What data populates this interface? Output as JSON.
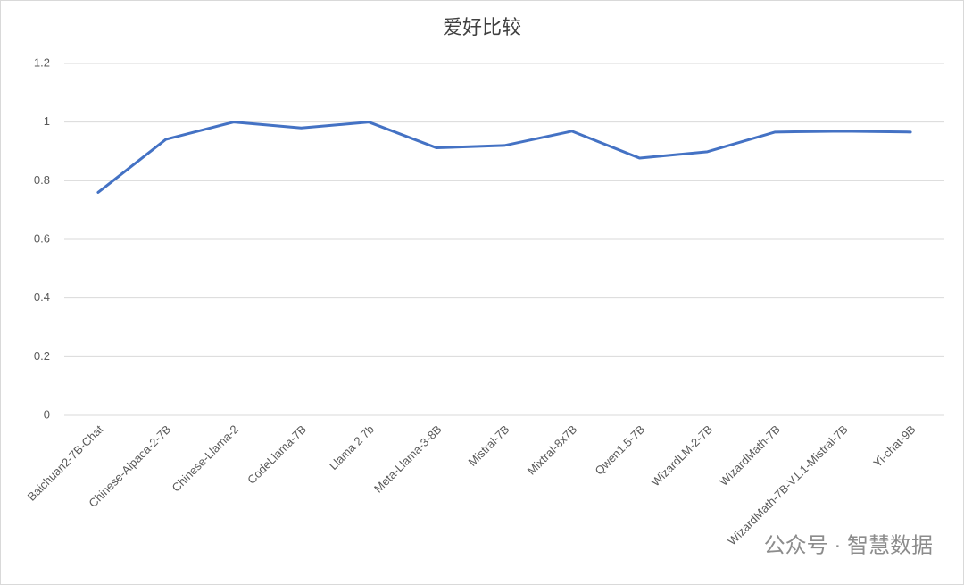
{
  "chart_data": {
    "type": "line",
    "title": "爱好比较",
    "categories": [
      "Baichuan2-7B-Chat",
      "Chinese-Alpaca-2-7B",
      "Chinese-Llama-2",
      "CodeLlama-7B",
      "Llama 2 7b",
      "Meta-Llama-3-8B",
      "Mistral-7B",
      "Mixtral-8x7B",
      "Qwen1.5-7B",
      "WizardLM-2-7B",
      "WizardMath-7B",
      "WizardMath-7B-V1.1-Mistral-7B",
      "Yi-chat-9B"
    ],
    "series": [
      {
        "name": "爱好",
        "color": "#4472c4",
        "values": [
          0.76,
          0.941,
          1.0,
          0.98,
          1.0,
          0.912,
          0.92,
          0.969,
          0.877,
          0.899,
          0.966,
          0.969,
          0.966
        ]
      }
    ],
    "ylim": [
      0,
      1.2
    ],
    "yticks": [
      0,
      0.2,
      0.4,
      0.6,
      0.8,
      1,
      1.2
    ],
    "grid": true,
    "watermark": "公众号 · 智慧数据"
  }
}
